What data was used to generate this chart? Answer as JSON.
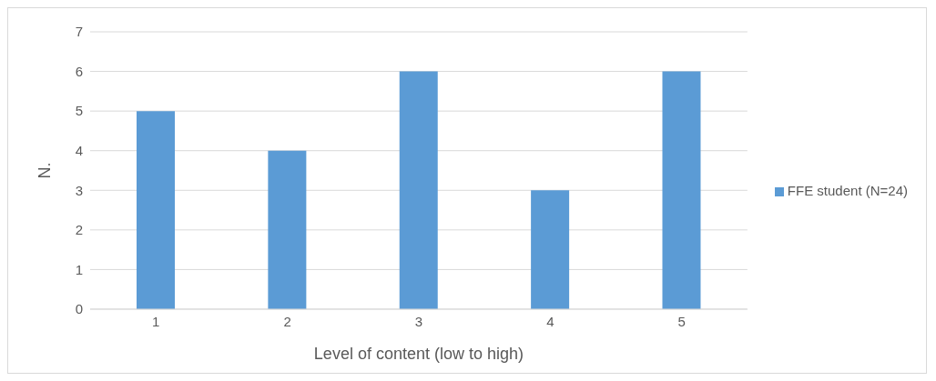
{
  "chart_data": {
    "type": "bar",
    "xlabel": "Level of content (low to high)",
    "ylabel": "N.",
    "categories": [
      "1",
      "2",
      "3",
      "4",
      "5"
    ],
    "series": [
      {
        "name": "FFE student (N=24)",
        "color": "#5b9bd5",
        "values": [
          5,
          4,
          6,
          3,
          6
        ]
      }
    ],
    "ylim": [
      0,
      7
    ],
    "yticks": [
      0,
      1,
      2,
      3,
      4,
      5,
      6,
      7
    ],
    "grid": "y",
    "legend": "right"
  }
}
